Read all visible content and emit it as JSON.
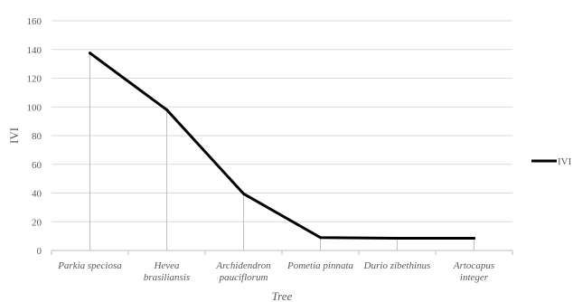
{
  "chart_data": {
    "type": "line",
    "title": "",
    "xlabel": "Tree",
    "ylabel": "IVI",
    "categories": [
      [
        "Parkia speciosa"
      ],
      [
        "Hevea",
        "brasiliansis"
      ],
      [
        "Archidendron",
        "pauciflorum"
      ],
      [
        "Pometia pinnata"
      ],
      [
        "Durio zibethinus"
      ],
      [
        "Artocapus",
        "integer"
      ]
    ],
    "series": [
      {
        "name": "IVI",
        "values": [
          137.5,
          98,
          39.5,
          9,
          8.5,
          8.5
        ],
        "color": "#000000"
      }
    ],
    "ylim": [
      0,
      160
    ],
    "yticks": [
      "0",
      "20",
      "40",
      "60",
      "80",
      "100",
      "120",
      "140",
      "160"
    ],
    "grid": true,
    "drop_lines": true,
    "legend": "right"
  }
}
